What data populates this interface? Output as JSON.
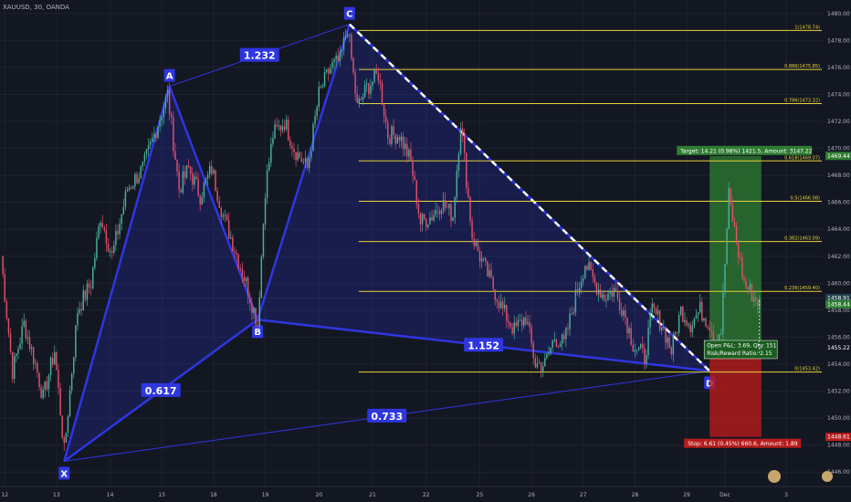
{
  "header": {
    "symbol": "XAUUSD, 30, OANDA"
  },
  "colors": {
    "background": "#131722",
    "grid": "#1e2230",
    "axis_text": "#b2b5be",
    "candle_up": "#4caf9a",
    "candle_down": "#e0506a",
    "harmonic": "#2f36e0",
    "harmonic_fill": "rgba(47,54,224,0.22)",
    "fib": "#e6d23a",
    "target_zone": "#2e7d32",
    "stop_zone": "#b71c1c"
  },
  "chart_data": {
    "type": "candlestick",
    "title": "",
    "y_axis": {
      "min": 1445,
      "max": 1481,
      "ticks": [
        1446.0,
        1448.0,
        1450.0,
        1452.0,
        1454.0,
        1456.0,
        1458.0,
        1460.0,
        1462.0,
        1464.0,
        1466.0,
        1468.0,
        1470.0,
        1472.0,
        1474.0,
        1476.0,
        1478.0,
        1480.0
      ]
    },
    "x_axis": {
      "ticks": [
        {
          "label": "12",
          "i": 2
        },
        {
          "label": "13",
          "i": 29
        },
        {
          "label": "14",
          "i": 57
        },
        {
          "label": "15",
          "i": 84
        },
        {
          "label": "18",
          "i": 111
        },
        {
          "label": "19",
          "i": 138
        },
        {
          "label": "20",
          "i": 166
        },
        {
          "label": "21",
          "i": 194
        },
        {
          "label": "22",
          "i": 222
        },
        {
          "label": "25",
          "i": 250
        },
        {
          "label": "26",
          "i": 277
        },
        {
          "label": "27",
          "i": 304
        },
        {
          "label": "28",
          "i": 331
        },
        {
          "label": "29",
          "i": 358
        },
        {
          "label": "Dec",
          "i": 378
        },
        {
          "label": "3",
          "i": 410
        }
      ],
      "n_bars": 430
    },
    "path_anchors": [
      [
        0,
        1462.0
      ],
      [
        6,
        1453.5
      ],
      [
        12,
        1457.0
      ],
      [
        18,
        1454.0
      ],
      [
        22,
        1451.5
      ],
      [
        28,
        1455.0
      ],
      [
        33,
        1447.5
      ],
      [
        40,
        1458.0
      ],
      [
        47,
        1460.0
      ],
      [
        52,
        1465.0
      ],
      [
        58,
        1462.0
      ],
      [
        66,
        1467.0
      ],
      [
        74,
        1468.5
      ],
      [
        80,
        1471.0
      ],
      [
        87,
        1474.0
      ],
      [
        93,
        1467.0
      ],
      [
        98,
        1468.5
      ],
      [
        104,
        1466.5
      ],
      [
        110,
        1468.5
      ],
      [
        116,
        1465.0
      ],
      [
        121,
        1463.0
      ],
      [
        128,
        1460.0
      ],
      [
        134,
        1457.0
      ],
      [
        138,
        1467.0
      ],
      [
        142,
        1471.0
      ],
      [
        148,
        1472.0
      ],
      [
        153,
        1470.0
      ],
      [
        160,
        1468.5
      ],
      [
        166,
        1474.0
      ],
      [
        172,
        1476.0
      ],
      [
        177,
        1476.5
      ],
      [
        181,
        1479.0
      ],
      [
        186,
        1473.0
      ],
      [
        191,
        1474.5
      ],
      [
        197,
        1475.5
      ],
      [
        202,
        1471.0
      ],
      [
        208,
        1471.0
      ],
      [
        214,
        1469.0
      ],
      [
        219,
        1464.5
      ],
      [
        225,
        1465.0
      ],
      [
        230,
        1466.0
      ],
      [
        236,
        1465.0
      ],
      [
        240,
        1472.0
      ],
      [
        246,
        1463.5
      ],
      [
        250,
        1462.0
      ],
      [
        256,
        1460.0
      ],
      [
        262,
        1458.0
      ],
      [
        268,
        1456.5
      ],
      [
        274,
        1457.5
      ],
      [
        279,
        1454.0
      ],
      [
        284,
        1454.0
      ],
      [
        289,
        1456.0
      ],
      [
        294,
        1455.5
      ],
      [
        300,
        1459.0
      ],
      [
        305,
        1461.5
      ],
      [
        310,
        1460.0
      ],
      [
        315,
        1459.0
      ],
      [
        320,
        1459.5
      ],
      [
        325,
        1458.0
      ],
      [
        330,
        1455.5
      ],
      [
        336,
        1454.5
      ],
      [
        340,
        1458.0
      ],
      [
        345,
        1457.0
      ],
      [
        350,
        1455.0
      ],
      [
        355,
        1458.0
      ],
      [
        360,
        1457.0
      ],
      [
        365,
        1458.0
      ],
      [
        370,
        1457.0
      ],
      [
        373,
        1456.0
      ],
      [
        376,
        1456.5
      ],
      [
        380,
        1466.5
      ],
      [
        384,
        1463.0
      ],
      [
        388,
        1460.0
      ],
      [
        393,
        1459.0
      ],
      [
        396,
        1458.5
      ],
      [
        400,
        1457.0
      ]
    ],
    "last_bar": 396,
    "pattern": {
      "points": [
        {
          "label": "X",
          "i": 33,
          "price": 1446.8
        },
        {
          "label": "A",
          "i": 88,
          "price": 1474.6
        },
        {
          "label": "B",
          "i": 134,
          "price": 1457.3
        },
        {
          "label": "C",
          "i": 182,
          "price": 1479.2
        },
        {
          "label": "D",
          "i": 370,
          "price": 1453.5
        }
      ],
      "ratios": [
        {
          "text": "0.617",
          "between": [
            "X",
            "B"
          ]
        },
        {
          "text": "1.232",
          "between": [
            "A",
            "C"
          ]
        },
        {
          "text": "1.152",
          "between": [
            "B",
            "D"
          ]
        },
        {
          "text": "0.733",
          "between": [
            "X",
            "D"
          ]
        }
      ]
    },
    "fib_levels": [
      {
        "ratio": "1",
        "price": 1478.74,
        "label": "1(1478.74)"
      },
      {
        "ratio": "0.886",
        "price": 1475.85,
        "label": "0.886(1475.85)"
      },
      {
        "ratio": "0.786",
        "price": 1473.32,
        "label": "0.786(1473.32)"
      },
      {
        "ratio": "0.618",
        "price": 1469.07,
        "label": "0.618(1469.07)"
      },
      {
        "ratio": "0.5",
        "price": 1466.08,
        "label": "0.5(1466.08)"
      },
      {
        "ratio": "0.382",
        "price": 1463.09,
        "label": "0.382(1463.09)"
      },
      {
        "ratio": "0.236",
        "price": 1459.4,
        "label": "0.236(1459.40)"
      },
      {
        "ratio": "0",
        "price": 1453.42,
        "label": "0(1453.42)"
      }
    ],
    "position": {
      "entry": 1455.22,
      "target": 1469.44,
      "stop": 1448.61,
      "start_i": 370,
      "end_i": 397,
      "target_text": "Target: 14.21 (0.98%) 1421.5, Amount: 3147.22",
      "stop_text": "Stop: 6.61 (0.45%) 660.6, Amount: 1.89",
      "pnl_text": "Open P&L: 3.69, Qty: 151",
      "rr_text": "Risk/Reward Ratio: 2.15"
    },
    "price_labels": [
      {
        "price": 1469.44,
        "text": "1469.44",
        "color": "#2e7d32"
      },
      {
        "price": 1458.91,
        "text": "1458.91",
        "color": "#21424a"
      },
      {
        "price": 1458.44,
        "text": "1458.44",
        "color": "#2e7d32"
      },
      {
        "price": 1455.22,
        "text": "1455.22",
        "color": "#131722"
      },
      {
        "price": 1448.61,
        "text": "1448.61",
        "color": "#b71c1c"
      }
    ]
  }
}
